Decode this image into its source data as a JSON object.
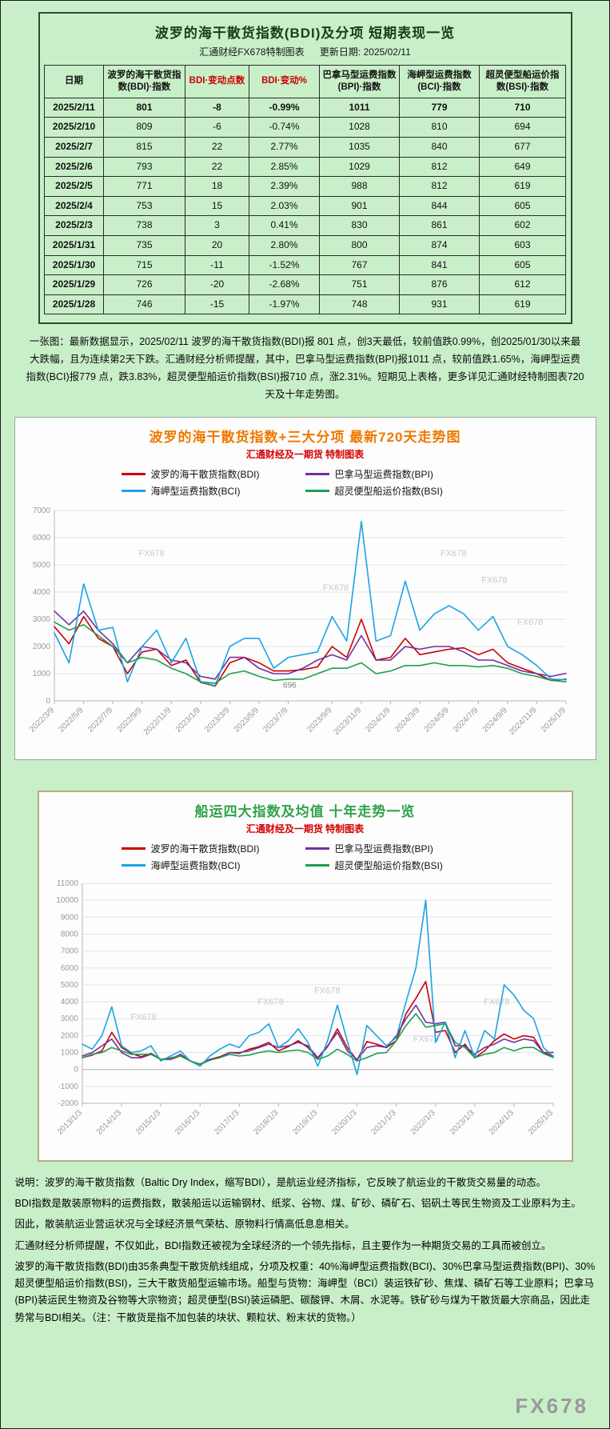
{
  "page": {
    "footer_watermark": "FX678"
  },
  "table_section": {
    "title": "波罗的海干散货指数(BDI)及分项 短期表现一览",
    "subtitle_left": "汇通财经FX678特制图表",
    "subtitle_right": "更新日期: 2025/02/11",
    "columns": [
      "日期",
      "波罗的海干散货指数(BDI)·指数",
      "BDI·变动点数",
      "BDI·变动%",
      "巴拿马型运费指数(BPI)·指数",
      "海岬型运费指数(BCI)·指数",
      "超灵便型船运价指数(BSI)·指数"
    ],
    "rows": [
      [
        "2025/2/11",
        "801",
        "-8",
        "-0.99%",
        "1011",
        "779",
        "710"
      ],
      [
        "2025/2/10",
        "809",
        "-6",
        "-0.74%",
        "1028",
        "810",
        "694"
      ],
      [
        "2025/2/7",
        "815",
        "22",
        "2.77%",
        "1035",
        "840",
        "677"
      ],
      [
        "2025/2/6",
        "793",
        "22",
        "2.85%",
        "1029",
        "812",
        "649"
      ],
      [
        "2025/2/5",
        "771",
        "18",
        "2.39%",
        "988",
        "812",
        "619"
      ],
      [
        "2025/2/4",
        "753",
        "15",
        "2.03%",
        "901",
        "844",
        "605"
      ],
      [
        "2025/2/3",
        "738",
        "3",
        "0.41%",
        "830",
        "861",
        "602"
      ],
      [
        "2025/1/31",
        "735",
        "20",
        "2.80%",
        "800",
        "874",
        "603"
      ],
      [
        "2025/1/30",
        "715",
        "-11",
        "-1.52%",
        "767",
        "841",
        "605"
      ],
      [
        "2025/1/29",
        "726",
        "-20",
        "-2.68%",
        "751",
        "876",
        "612"
      ],
      [
        "2025/1/28",
        "746",
        "-15",
        "-1.97%",
        "748",
        "931",
        "619"
      ]
    ],
    "note": "一张图：最新数据显示，2025/02/11 波罗的海干散货指数(BDI)报 801 点，创3天最低，较前值跌0.99%，创2025/01/30以来最大跌幅，且为连续第2天下跌。汇通财经分析师提醒，其中，巴拿马型运费指数(BPI)报1011 点，较前值跌1.65%，海岬型运费指数(BCI)报779 点，跌3.83%，超灵便型船运价指数(BSI)报710 点，涨2.31%。短期见上表格，更多详见汇通财经特制图表720天及十年走势图。"
  },
  "chart_data": [
    {
      "type": "line",
      "title": "波罗的海干散货指数+三大分项  最新720天走势图",
      "subtitle": "汇通财经及一期货 特制图表",
      "watermark": "FX678",
      "ylim": [
        0,
        7000
      ],
      "ytick_step": 1000,
      "x_labels": [
        "2022/3/9",
        "2022/5/9",
        "2022/7/9",
        "2022/9/9",
        "2022/11/9",
        "2023/1/9",
        "2023/3/9",
        "2023/5/9",
        "2023/7/9",
        "2023/9/9",
        "2023/11/9",
        "2024/1/9",
        "2024/3/9",
        "2024/5/9",
        "2024/7/9",
        "2024/9/9",
        "2024/11/9",
        "2025/1/9"
      ],
      "annotation": {
        "text": "696",
        "x_frac": 0.46,
        "y_value": 480
      },
      "series": [
        {
          "name": "波罗的海干散货指数(BDI)",
          "color": "#cc0000",
          "values": [
            2730,
            2100,
            3100,
            2300,
            2000,
            1000,
            1800,
            1900,
            1300,
            1500,
            680,
            540,
            1400,
            1600,
            1400,
            1100,
            1100,
            1150,
            1250,
            2000,
            1600,
            3000,
            1500,
            1600,
            2300,
            1700,
            1800,
            1900,
            1950,
            1700,
            1900,
            1400,
            1200,
            1000,
            750,
            801
          ]
        },
        {
          "name": "巴拿马型运费指数(BPI)",
          "color": "#7030a0",
          "values": [
            3300,
            2800,
            3300,
            2600,
            2100,
            1400,
            2000,
            1900,
            1500,
            1400,
            900,
            800,
            1600,
            1600,
            1200,
            1000,
            1000,
            1200,
            1500,
            1700,
            1500,
            2400,
            1500,
            1500,
            2000,
            1900,
            2000,
            2000,
            1800,
            1500,
            1500,
            1300,
            1100,
            1000,
            900,
            1011
          ]
        },
        {
          "name": "海岬型运费指数(BCI)",
          "color": "#1ba3e8",
          "values": [
            2500,
            1400,
            4300,
            2600,
            2700,
            700,
            2000,
            2600,
            1400,
            2300,
            700,
            560,
            2000,
            2300,
            2300,
            1200,
            1600,
            1700,
            1800,
            3100,
            2200,
            6600,
            2200,
            2400,
            4400,
            2600,
            3200,
            3500,
            3200,
            2600,
            3100,
            2000,
            1700,
            1300,
            800,
            779
          ]
        },
        {
          "name": "超灵便型船运价指数(BSI)",
          "color": "#1e9e50",
          "values": [
            2900,
            2600,
            2800,
            2400,
            2000,
            1400,
            1600,
            1500,
            1200,
            1000,
            700,
            650,
            1000,
            1100,
            900,
            750,
            800,
            800,
            1000,
            1200,
            1200,
            1400,
            1000,
            1100,
            1300,
            1300,
            1400,
            1300,
            1300,
            1250,
            1300,
            1200,
            1000,
            900,
            750,
            710
          ]
        }
      ]
    },
    {
      "type": "line",
      "title": "船运四大指数及均值 十年走势一览",
      "subtitle": "汇通财经及一期货 特制图表",
      "watermark": "FX678",
      "ylim": [
        -2000,
        11000
      ],
      "ytick_step": 1000,
      "x_labels": [
        "2013/1/3",
        "2014/1/3",
        "2015/1/3",
        "2016/1/3",
        "2017/1/3",
        "2018/1/3",
        "2019/1/3",
        "2020/1/3",
        "2021/1/3",
        "2022/1/3",
        "2023/1/3",
        "2024/1/3",
        "2025/1/3"
      ],
      "series": [
        {
          "name": "波罗的海干散货指数(BDI)",
          "color": "#cc0000",
          "values": [
            700,
            850,
            1100,
            2200,
            1300,
            950,
            750,
            950,
            600,
            600,
            800,
            500,
            320,
            600,
            750,
            1000,
            950,
            1200,
            1350,
            1600,
            1100,
            1350,
            1700,
            1300,
            650,
            1350,
            2400,
            1300,
            550,
            1650,
            1500,
            1300,
            1700,
            3300,
            4200,
            5200,
            2200,
            2300,
            1000,
            1500,
            680,
            1100,
            1700,
            2100,
            1800,
            2000,
            1900,
            1000,
            801
          ]
        },
        {
          "name": "巴拿马型运费指数(BPI)",
          "color": "#7030a0",
          "values": [
            800,
            1000,
            1400,
            1800,
            1000,
            700,
            700,
            900,
            600,
            600,
            900,
            500,
            300,
            600,
            700,
            1000,
            1000,
            1100,
            1300,
            1500,
            1300,
            1400,
            1600,
            1400,
            700,
            1400,
            2200,
            1100,
            600,
            1300,
            1400,
            1300,
            2000,
            3000,
            3800,
            2800,
            2700,
            2800,
            1400,
            1400,
            900,
            1300,
            1500,
            1800,
            1600,
            1800,
            1700,
            1000,
            1011
          ]
        },
        {
          "name": "海岬型运费指数(BCI)",
          "color": "#1ba3e8",
          "values": [
            1500,
            1200,
            2000,
            3700,
            1400,
            1000,
            1100,
            1400,
            500,
            800,
            1100,
            500,
            200,
            800,
            1200,
            1500,
            1300,
            2000,
            2200,
            2700,
            1300,
            1700,
            2400,
            1600,
            200,
            1700,
            3800,
            1700,
            -300,
            2600,
            2000,
            1400,
            1900,
            4000,
            6000,
            10000,
            1600,
            2800,
            700,
            2300,
            700,
            2300,
            1800,
            5000,
            4400,
            3500,
            3000,
            1300,
            779
          ]
        },
        {
          "name": "超灵便型船运价指数(BSI)",
          "color": "#1e9e50",
          "values": [
            700,
            900,
            1000,
            1300,
            1100,
            900,
            900,
            900,
            600,
            700,
            800,
            500,
            300,
            550,
            700,
            900,
            800,
            850,
            1000,
            1100,
            1000,
            1100,
            1150,
            1000,
            600,
            800,
            1200,
            900,
            500,
            700,
            950,
            1000,
            1700,
            2600,
            3300,
            2500,
            2600,
            2700,
            1600,
            1300,
            700,
            900,
            1000,
            1300,
            1100,
            1300,
            1300,
            950,
            710
          ]
        }
      ]
    }
  ],
  "description": {
    "lines": [
      "说明：波罗的海干散货指数（Baltic Dry Index，缩写BDI），是航运业经济指标，它反映了航运业的干散货交易量的动态。",
      "BDI指数是散装原物料的运费指数，散装船运以运输钢材、纸浆、谷物、煤、矿砂、磷矿石、铝矾土等民生物资及工业原料为主。",
      "因此，散装航运业营运状况与全球经济景气荣枯、原物料行情高低息息相关。",
      "汇通财经分析师提醒，不仅如此，BDI指数还被视为全球经济的一个领先指标，且主要作为一种期货交易的工具而被创立。",
      "波罗的海干散货指数(BDI)由35条典型干散货航线组成，分项及权重：40%海岬型运费指数(BCI)、30%巴拿马型运费指数(BPI)、30%超灵便型船运价指数(BSI)，三大干散货船型运输市场。船型与货物：海岬型（BCI）装运铁矿砂、焦煤、磷矿石等工业原料；巴拿马(BPI)装运民生物资及谷物等大宗物资；超灵便型(BSI)装运磷肥、碳酸钾、木屑、水泥等。铁矿砂与煤为干散货最大宗商品，因此走势常与BDI相关。（注：干散货是指不加包装的块状、颗粒状、粉末状的货物。）"
    ]
  }
}
